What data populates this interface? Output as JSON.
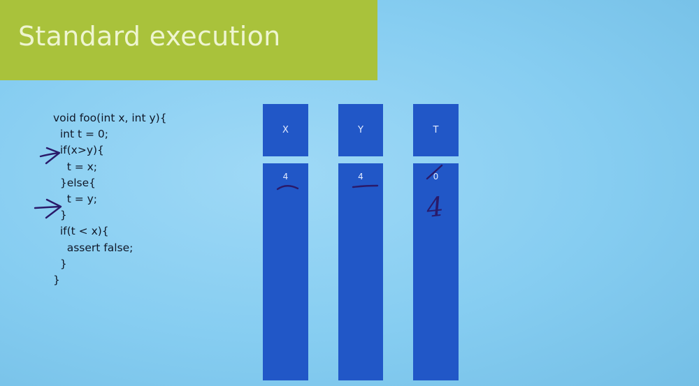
{
  "slide": {
    "title": "Standard execution",
    "title_bar_color": "#a9c23b",
    "background_color": "#8fd1f3",
    "column_color": "#2157c7"
  },
  "code": {
    "lines": [
      "void foo(int x, int y){",
      "  int t = 0;",
      "  if(x>y){",
      "    t = x;",
      "  }else{",
      "    t = y;",
      "  }",
      "  if(t < x){",
      "    assert false;",
      "  }",
      "}"
    ]
  },
  "columns": [
    {
      "label": "X",
      "value": "4"
    },
    {
      "label": "Y",
      "value": "4"
    },
    {
      "label": "T",
      "value": "0"
    }
  ],
  "annotations": {
    "handwritten_t_value": "4",
    "arrow_icon": "hand-drawn-arrow-icon",
    "underline_icon": "hand-drawn-underline-icon",
    "strike_icon": "hand-drawn-strike-icon",
    "ink_color": "#2a1a6a"
  }
}
